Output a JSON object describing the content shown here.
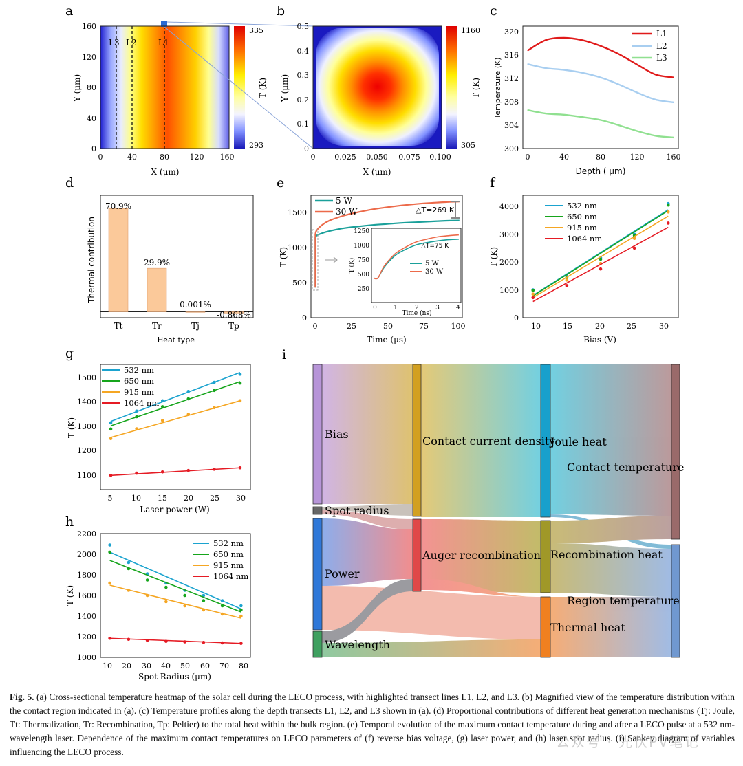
{
  "panels": {
    "a": {
      "label": "a",
      "xlabel": "X (μm)",
      "ylabel": "Y (μm)",
      "xticks": [
        "0",
        "40",
        "80",
        "120",
        "160"
      ],
      "yticks": [
        "0",
        "40",
        "80",
        "120",
        "160"
      ],
      "lines": [
        "L3",
        "L2",
        "L1"
      ],
      "cbar_label": "T (K)",
      "cbar_max": "335",
      "cbar_min": "293"
    },
    "b": {
      "label": "b",
      "xlabel": "X (μm)",
      "ylabel": "Y (μm)",
      "xticks": [
        "0",
        "0.025",
        "0.050",
        "0.075",
        "0.100"
      ],
      "yticks": [
        "0",
        "0.1",
        "0.2",
        "0.3",
        "0.4",
        "0.5"
      ],
      "cbar_label": "T (K)",
      "cbar_max": "1160",
      "cbar_min": "305"
    },
    "c": {
      "label": "c",
      "xlabel": "Depth ( μm)",
      "ylabel": "Temperature (K)",
      "xticks": [
        "0",
        "40",
        "80",
        "120",
        "160"
      ],
      "yticks": [
        "300",
        "304",
        "308",
        "312",
        "316",
        "320"
      ],
      "legend": [
        "L1",
        "L2",
        "L3"
      ]
    },
    "d": {
      "label": "d",
      "xlabel": "Heat type",
      "ylabel": "Thermal contribution",
      "categories": [
        "Tt",
        "Tr",
        "Tj",
        "Tp"
      ],
      "value_labels": [
        "70.9%",
        "29.9%",
        "0.001%",
        "-0.868%"
      ]
    },
    "e": {
      "label": "e",
      "xlabel": "Time (μs)",
      "ylabel": "T (K)",
      "xticks": [
        "0",
        "25",
        "50",
        "75",
        "100"
      ],
      "yticks": [
        "0",
        "500",
        "1000",
        "1500"
      ],
      "legend": [
        "5 W",
        "30 W"
      ],
      "dt_main": "△T=269 K",
      "inset": {
        "xlabel": "Time (ns)",
        "ylabel": "T (K)",
        "xticks": [
          "0",
          "1",
          "2",
          "3",
          "4"
        ],
        "yticks": [
          "250",
          "500",
          "750",
          "1000",
          "1250"
        ],
        "dt": "△T=75 K",
        "legend": [
          "5 W",
          "30 W"
        ]
      }
    },
    "f": {
      "label": "f",
      "xlabel": "Bias (V)",
      "ylabel": "T (K)",
      "xticks": [
        "10",
        "15",
        "20",
        "25",
        "30"
      ],
      "yticks": [
        "0",
        "1000",
        "2000",
        "3000",
        "4000"
      ],
      "legend": [
        "532 nm",
        "650 nm",
        "915 nm",
        "1064 nm"
      ]
    },
    "g": {
      "label": "g",
      "xlabel": "Laser power (W)",
      "ylabel": "T (K)",
      "xticks": [
        "5",
        "10",
        "15",
        "20",
        "25",
        "30"
      ],
      "yticks": [
        "1100",
        "1200",
        "1300",
        "1400",
        "1500"
      ],
      "legend": [
        "532 nm",
        "650 nm",
        "915 nm",
        "1064 nm"
      ]
    },
    "h": {
      "label": "h",
      "xlabel": "Spot Radius (μm)",
      "ylabel": "T (K)",
      "xticks": [
        "10",
        "20",
        "30",
        "40",
        "50",
        "60",
        "70",
        "80"
      ],
      "yticks": [
        "1000",
        "1200",
        "1400",
        "1600",
        "1800",
        "2000",
        "2200"
      ],
      "legend": [
        "532 nm",
        "650 nm",
        "915 nm",
        "1064 nm"
      ]
    },
    "i": {
      "label": "i",
      "nodes": {
        "bias": "Bias",
        "spot_radius": "Spot radius",
        "power": "Power",
        "wavelength": "Wavelength",
        "contact_current": "Contact current density",
        "auger": "Auger recombination",
        "joule": "Joule heat",
        "recombination": "Recombination heat",
        "thermal": "Thermal heat",
        "contact_temp": "Contact temperature",
        "region_temp": "Region temperature"
      }
    }
  },
  "colors": {
    "l1": "#e01a1a",
    "l2": "#a8cef0",
    "l3": "#90e090",
    "c532": "#1ba3cf",
    "c650": "#16a51c",
    "c915": "#f5a623",
    "c1064": "#e51b24",
    "bar": "#fbc99a",
    "s5w": "#1aa09a",
    "s30w": "#ec6a4a"
  },
  "chart_data": [
    {
      "panel": "c",
      "type": "line",
      "xlabel": "Depth ( μm)",
      "ylabel": "Temperature (K)",
      "xlim": [
        -5,
        165
      ],
      "ylim": [
        300,
        321
      ],
      "series": [
        {
          "name": "L1",
          "x": [
            0,
            20,
            40,
            60,
            80,
            100,
            120,
            140,
            160
          ],
          "y": [
            316.8,
            318.6,
            319.0,
            318.6,
            317.6,
            316.2,
            314.4,
            312.7,
            312.2
          ]
        },
        {
          "name": "L2",
          "x": [
            0,
            20,
            40,
            60,
            80,
            100,
            120,
            140,
            160
          ],
          "y": [
            314.5,
            313.8,
            313.5,
            313.0,
            312.2,
            311.0,
            309.6,
            308.4,
            307.9
          ]
        },
        {
          "name": "L3",
          "x": [
            0,
            20,
            40,
            60,
            80,
            100,
            120,
            140,
            160
          ],
          "y": [
            306.6,
            306.0,
            305.8,
            305.4,
            304.9,
            304.0,
            303.0,
            302.2,
            301.9
          ]
        }
      ]
    },
    {
      "panel": "d",
      "type": "bar",
      "categories": [
        "Tt",
        "Tr",
        "Tj",
        "Tp"
      ],
      "values": [
        70.9,
        29.9,
        0.001,
        -0.868
      ],
      "ylim": [
        -4,
        80
      ]
    },
    {
      "panel": "e",
      "type": "line",
      "xlabel": "Time (μs)",
      "ylabel": "T (K)",
      "xlim": [
        -3,
        102
      ],
      "ylim": [
        0,
        1750
      ],
      "series": [
        {
          "name": "5 W",
          "x": [
            0,
            1,
            5,
            10,
            20,
            30,
            40,
            50,
            60,
            70,
            80,
            90,
            100
          ],
          "y": [
            1150,
            1175,
            1210,
            1240,
            1280,
            1305,
            1325,
            1340,
            1355,
            1365,
            1375,
            1385,
            1390
          ]
        },
        {
          "name": "30 W",
          "x": [
            0,
            1,
            5,
            10,
            20,
            30,
            40,
            50,
            60,
            70,
            80,
            90,
            100
          ],
          "y": [
            1190,
            1250,
            1330,
            1390,
            1460,
            1510,
            1550,
            1580,
            1605,
            1625,
            1640,
            1652,
            1660
          ]
        }
      ],
      "inset": {
        "xlim": [
          -0.1,
          4.1
        ],
        "ylim": [
          0,
          1300
        ],
        "series": [
          {
            "name": "5 W",
            "x": [
              0,
              0.2,
              0.5,
              1,
              1.5,
              2,
              2.5,
              3,
              3.5,
              4
            ],
            "y": [
              430,
              430,
              620,
              820,
              930,
              1010,
              1050,
              1080,
              1100,
              1110
            ]
          },
          {
            "name": "30 W",
            "x": [
              0,
              0.2,
              0.5,
              1,
              1.5,
              2,
              2.5,
              3,
              3.5,
              4
            ],
            "y": [
              430,
              430,
              640,
              850,
              970,
              1060,
              1110,
              1150,
              1170,
              1185
            ]
          }
        ]
      }
    },
    {
      "panel": "f",
      "type": "scatter",
      "xlabel": "Bias (V)",
      "ylabel": "T (K)",
      "xlim": [
        8.5,
        31.5
      ],
      "ylim": [
        0,
        4400
      ],
      "x": [
        10,
        15,
        20,
        25,
        30
      ],
      "series": [
        {
          "name": "532 nm",
          "points": [
            1000,
            1500,
            2150,
            3000,
            4100
          ],
          "fit": [
            800,
            3880
          ]
        },
        {
          "name": "650 nm",
          "points": [
            980,
            1450,
            2100,
            2950,
            4050
          ],
          "fit": [
            780,
            3850
          ]
        },
        {
          "name": "915 nm",
          "points": [
            850,
            1350,
            1950,
            2850,
            3800
          ],
          "fit": [
            720,
            3650
          ]
        },
        {
          "name": "1064 nm",
          "points": [
            720,
            1150,
            1750,
            2500,
            3400
          ],
          "fit": [
            580,
            3250
          ]
        }
      ]
    },
    {
      "panel": "g",
      "type": "scatter",
      "xlabel": "Laser power (W)",
      "ylabel": "T (K)",
      "xlim": [
        3,
        32
      ],
      "ylim": [
        1050,
        1560
      ],
      "x": [
        5,
        10,
        15,
        20,
        25,
        30
      ],
      "series": [
        {
          "name": "532 nm",
          "points": [
            1322,
            1370,
            1412,
            1450,
            1487,
            1520
          ],
          "fit": [
            1328,
            1527
          ]
        },
        {
          "name": "650 nm",
          "points": [
            1297,
            1347,
            1388,
            1420,
            1454,
            1484
          ],
          "fit": [
            1310,
            1490
          ]
        },
        {
          "name": "915 nm",
          "points": [
            1258,
            1298,
            1332,
            1357,
            1384,
            1412
          ],
          "fit": [
            1263,
            1412
          ]
        },
        {
          "name": "1064 nm",
          "points": [
            1108,
            1117,
            1122,
            1128,
            1133,
            1139
          ],
          "fit": [
            1108,
            1139
          ]
        }
      ]
    },
    {
      "panel": "h",
      "type": "scatter",
      "xlabel": "Spot Radius (μm)",
      "ylabel": "T (K)",
      "xlim": [
        5,
        85
      ],
      "ylim": [
        1000,
        2200
      ],
      "x": [
        10,
        20,
        30,
        40,
        50,
        60,
        70,
        80
      ],
      "series": [
        {
          "name": "532 nm",
          "points": [
            2090,
            1920,
            1810,
            1720,
            1650,
            1600,
            1550,
            1500
          ],
          "fit": [
            2020,
            1470
          ]
        },
        {
          "name": "650 nm",
          "points": [
            2020,
            1860,
            1750,
            1680,
            1600,
            1550,
            1500,
            1460
          ],
          "fit": [
            1940,
            1440
          ]
        },
        {
          "name": "915 nm",
          "points": [
            1720,
            1650,
            1600,
            1540,
            1500,
            1460,
            1420,
            1400
          ],
          "fit": [
            1700,
            1380
          ]
        },
        {
          "name": "1064 nm",
          "points": [
            1185,
            1175,
            1165,
            1155,
            1150,
            1145,
            1140,
            1135
          ],
          "fit": [
            1185,
            1135
          ]
        }
      ]
    }
  ],
  "caption": {
    "fig": "Fig. 5.",
    "text": " (a) Cross-sectional temperature heatmap of the solar cell during the LECO process, with highlighted transect lines L1, L2, and L3. (b) Magnified view of the temperature distribution within the contact region indicated in (a). (c) Temperature profiles along the depth transects L1, L2, and L3 shown in (a). (d) Proportional contributions of different heat generation mechanisms (Tj: Joule, Tt: Thermalization, Tr: Recombination, Tp: Peltier) to the total heat within the bulk region. (e) Temporal evolution of the maximum contact temperature during and after a LECO pulse at a 532 nm-wavelength laser. Dependence of the maximum contact temperatures on LECO parameters of (f) reverse bias voltage, (g) laser power, and (h) laser spot radius. (i) Sankey diagram of variables influencing the LECO process."
  },
  "watermark": "公众号 · 光伏PV笔记"
}
